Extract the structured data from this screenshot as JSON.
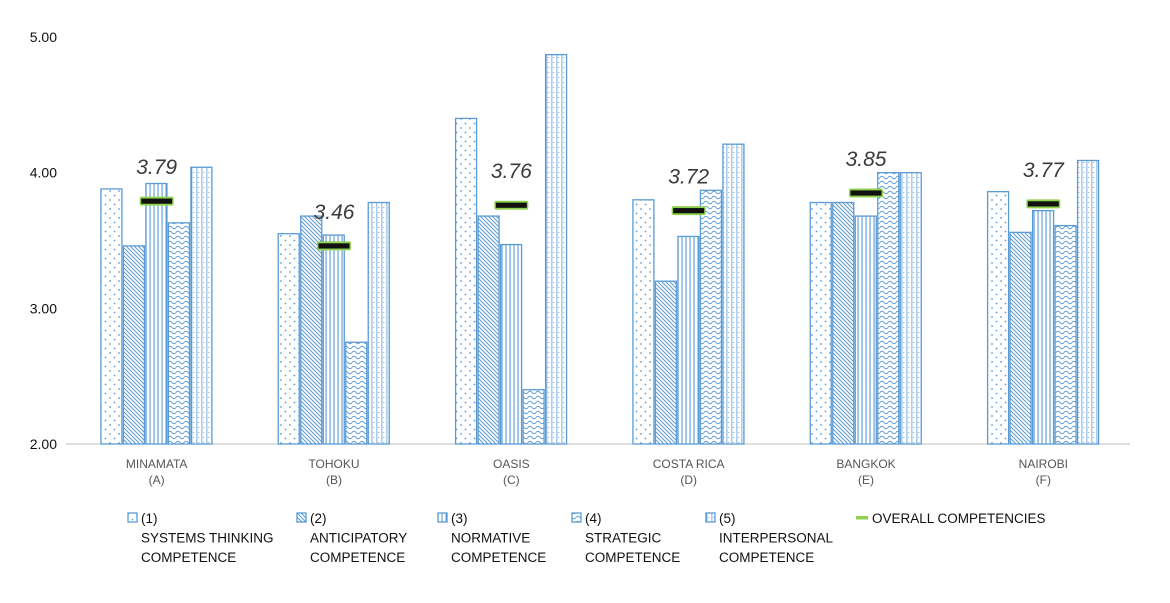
{
  "colors": {
    "bar_stroke": "#5b9bd5",
    "pattern": "#5b9bd5",
    "overall_marker": "#111111",
    "overall_glow": "#8fd14f",
    "axis": "#bfbfbf"
  },
  "chart_data": {
    "type": "bar",
    "ylim": [
      2.0,
      5.0
    ],
    "yticks": [
      "5.00",
      "4.00",
      "3.00",
      "2.00"
    ],
    "grid": false,
    "legend_position": "bottom",
    "categories": [
      {
        "line1": "MINAMATA",
        "line2": "(A)"
      },
      {
        "line1": "TOHOKU",
        "line2": "(B)"
      },
      {
        "line1": "OASIS",
        "line2": "(C)"
      },
      {
        "line1": "COSTA RICA",
        "line2": "(D)"
      },
      {
        "line1": "BANGKOK",
        "line2": "(E)"
      },
      {
        "line1": "NAIROBI",
        "line2": "(F)"
      }
    ],
    "series": [
      {
        "name": "(1) SYSTEMS THINKING COMPETENCE",
        "legend_lines": [
          "(1)",
          "SYSTEMS THINKING",
          "COMPETENCE"
        ],
        "pattern": "dots",
        "values": [
          3.88,
          3.55,
          4.4,
          3.8,
          3.78,
          3.86
        ]
      },
      {
        "name": "(2) ANTICIPATORY COMPETENCE",
        "legend_lines": [
          "(2)",
          "ANTICIPATORY",
          "COMPETENCE"
        ],
        "pattern": "diag",
        "values": [
          3.46,
          3.68,
          3.68,
          3.2,
          3.78,
          3.56
        ]
      },
      {
        "name": "(3) NORMATIVE COMPETENCE",
        "legend_lines": [
          "(3)",
          "NORMATIVE",
          "COMPETENCE"
        ],
        "pattern": "vlines",
        "values": [
          3.92,
          3.54,
          3.47,
          3.53,
          3.68,
          3.72
        ]
      },
      {
        "name": "(4) STRATEGIC COMPETENCE",
        "legend_lines": [
          "(4)",
          "STRATEGIC",
          "COMPETENCE"
        ],
        "pattern": "wave",
        "values": [
          3.63,
          2.75,
          2.4,
          3.87,
          4.0,
          3.61
        ]
      },
      {
        "name": "(5) INTERPERSONAL COMPETENCE",
        "legend_lines": [
          "(5)",
          "INTERPERSONAL",
          "COMPETENCE"
        ],
        "pattern": "grid",
        "values": [
          4.04,
          3.78,
          4.87,
          4.21,
          4.0,
          4.09
        ]
      }
    ],
    "overall": {
      "name": "OVERALL COMPETENCIES",
      "values": [
        3.79,
        3.46,
        3.76,
        3.72,
        3.85,
        3.77
      ],
      "labels": [
        "3.79",
        "3.46",
        "3.76",
        "3.72",
        "3.85",
        "3.77"
      ]
    }
  }
}
